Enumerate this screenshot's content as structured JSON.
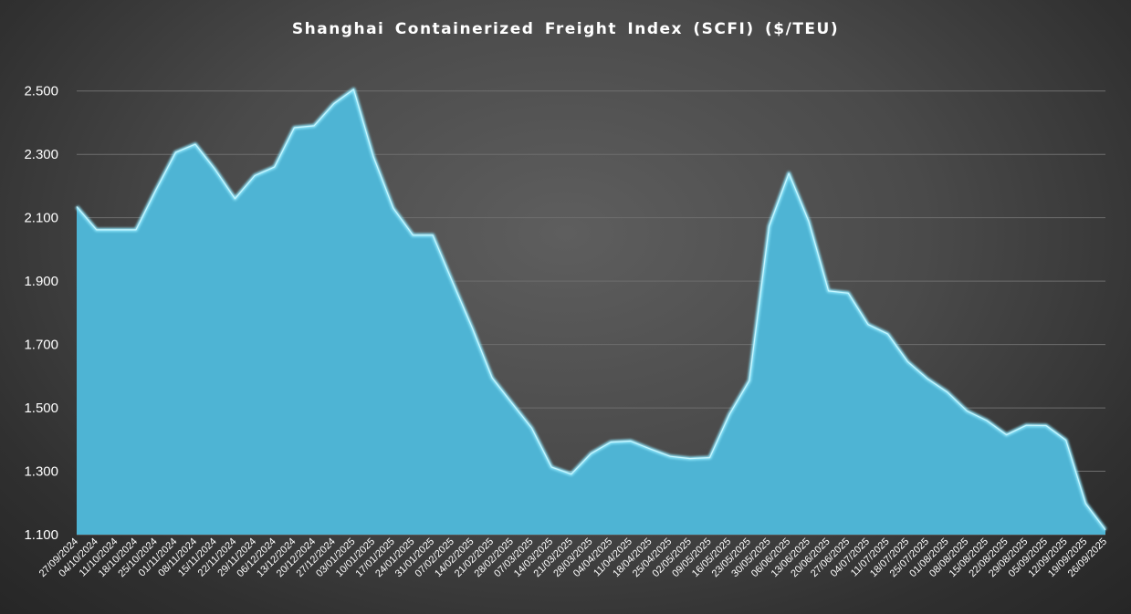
{
  "chart_data": {
    "type": "area",
    "title": "Shanghai Containerized Freight Index (SCFI) ($/TEU)",
    "xlabel": "",
    "ylabel": "",
    "ylim": [
      1100,
      2600
    ],
    "yticks": [
      1100,
      1300,
      1500,
      1700,
      1900,
      2100,
      2300,
      2500
    ],
    "ytick_labels": [
      "1.100",
      "1.300",
      "1.500",
      "1.700",
      "1.900",
      "2.100",
      "2.300",
      "2.500"
    ],
    "grid": true,
    "legend": "none",
    "categories": [
      "27/09/2024",
      "04/10/2024",
      "11/10/2024",
      "18/10/2024",
      "25/10/2024",
      "01/11/2024",
      "08/11/2024",
      "15/11/2024",
      "22/11/2024",
      "29/11/2024",
      "06/12/2024",
      "13/12/2024",
      "20/12/2024",
      "27/12/2024",
      "03/01/2025",
      "10/01/2025",
      "17/01/2025",
      "24/01/2025",
      "31/01/2025",
      "07/02/2025",
      "14/02/2025",
      "21/02/2025",
      "28/02/2025",
      "07/03/2025",
      "14/03/2025",
      "21/03/2025",
      "28/03/2025",
      "04/04/2025",
      "11/04/2025",
      "18/04/2025",
      "25/04/2025",
      "02/05/2025",
      "09/05/2025",
      "16/05/2025",
      "23/05/2025",
      "30/05/2025",
      "06/06/2025",
      "13/06/2025",
      "20/06/2025",
      "27/06/2025",
      "04/07/2025",
      "11/07/2025",
      "18/07/2025",
      "25/07/2025",
      "01/08/2025",
      "08/08/2025",
      "15/08/2025",
      "22/08/2025",
      "29/08/2025",
      "05/09/2025",
      "12/09/2025",
      "19/09/2025",
      "26/09/2025"
    ],
    "values": [
      2135,
      2062,
      2062,
      2062,
      2187,
      2306,
      2332,
      2252,
      2160,
      2233,
      2260,
      2384,
      2390,
      2460,
      2505,
      2292,
      2130,
      2045,
      2045,
      1897,
      1751,
      1595,
      1515,
      1436,
      1313,
      1291,
      1356,
      1392,
      1395,
      1370,
      1347,
      1340,
      1343,
      1480,
      1586,
      2073,
      2240,
      2089,
      1869,
      1862,
      1763,
      1733,
      1646,
      1592,
      1550,
      1490,
      1460,
      1415,
      1445,
      1444,
      1398,
      1198,
      1115
    ],
    "colors": {
      "fill": "#4eb4d4",
      "edge": "#8fe6fb",
      "grid": "#6e6e6e",
      "text": "#ffffff"
    }
  }
}
